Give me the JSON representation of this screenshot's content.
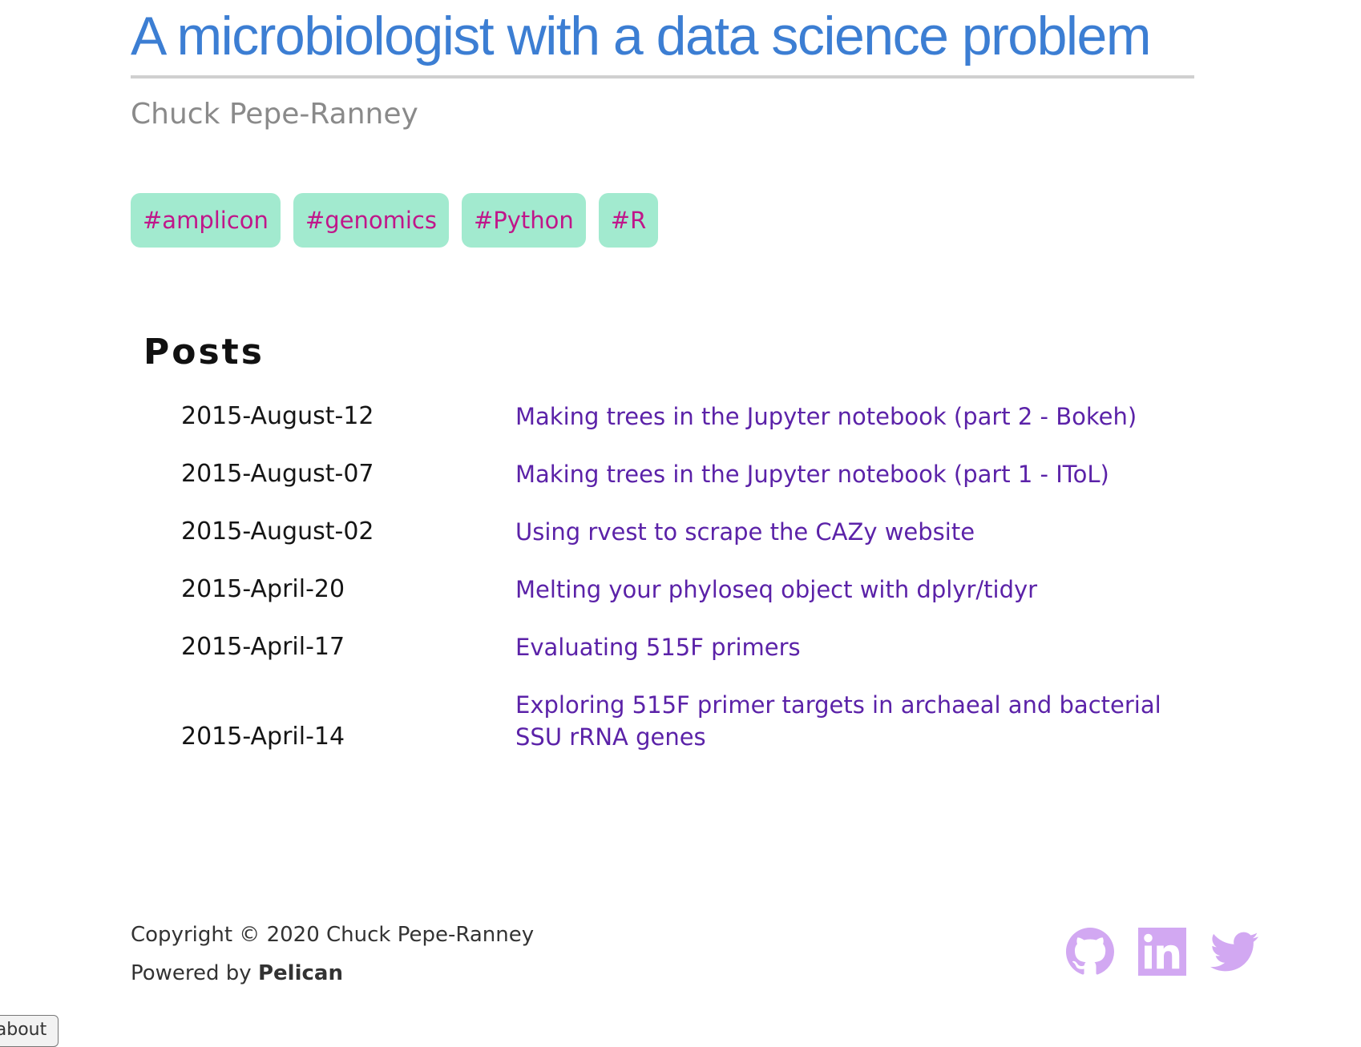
{
  "site": {
    "title": "A microbiologist with a data science problem",
    "author": "Chuck Pepe-Ranney"
  },
  "tags": [
    "#amplicon",
    "#genomics",
    "#Python",
    "#R"
  ],
  "posts_section": {
    "heading": "Posts",
    "posts": [
      {
        "date": "2015-August-12",
        "title": "Making trees in the Jupyter notebook (part 2 - Bokeh)"
      },
      {
        "date": "2015-August-07",
        "title": "Making trees in the Jupyter notebook (part 1 - IToL)"
      },
      {
        "date": "2015-August-02",
        "title": "Using rvest to scrape the CAZy website"
      },
      {
        "date": "2015-April-20",
        "title": "Melting your phyloseq object with dplyr/tidyr"
      },
      {
        "date": "2015-April-17",
        "title": "Evaluating 515F primers"
      },
      {
        "date": "2015-April-14",
        "title": "Exploring 515F primer targets in archaeal and bacterial SSU rRNA genes"
      }
    ]
  },
  "footer": {
    "copyright": "Copyright © 2020 Chuck Pepe-Ranney",
    "powered_by_prefix": "Powered by ",
    "powered_by_name": "Pelican"
  },
  "social": {
    "icons": [
      "github-icon",
      "linkedin-icon",
      "twitter-icon"
    ],
    "color": "#d2a8f2"
  },
  "about_tab": {
    "label": "about"
  },
  "colors": {
    "title": "#3c7ed3",
    "tag_bg": "#a2eacf",
    "tag_text": "#c0168a",
    "post_link": "#5b22a8"
  }
}
